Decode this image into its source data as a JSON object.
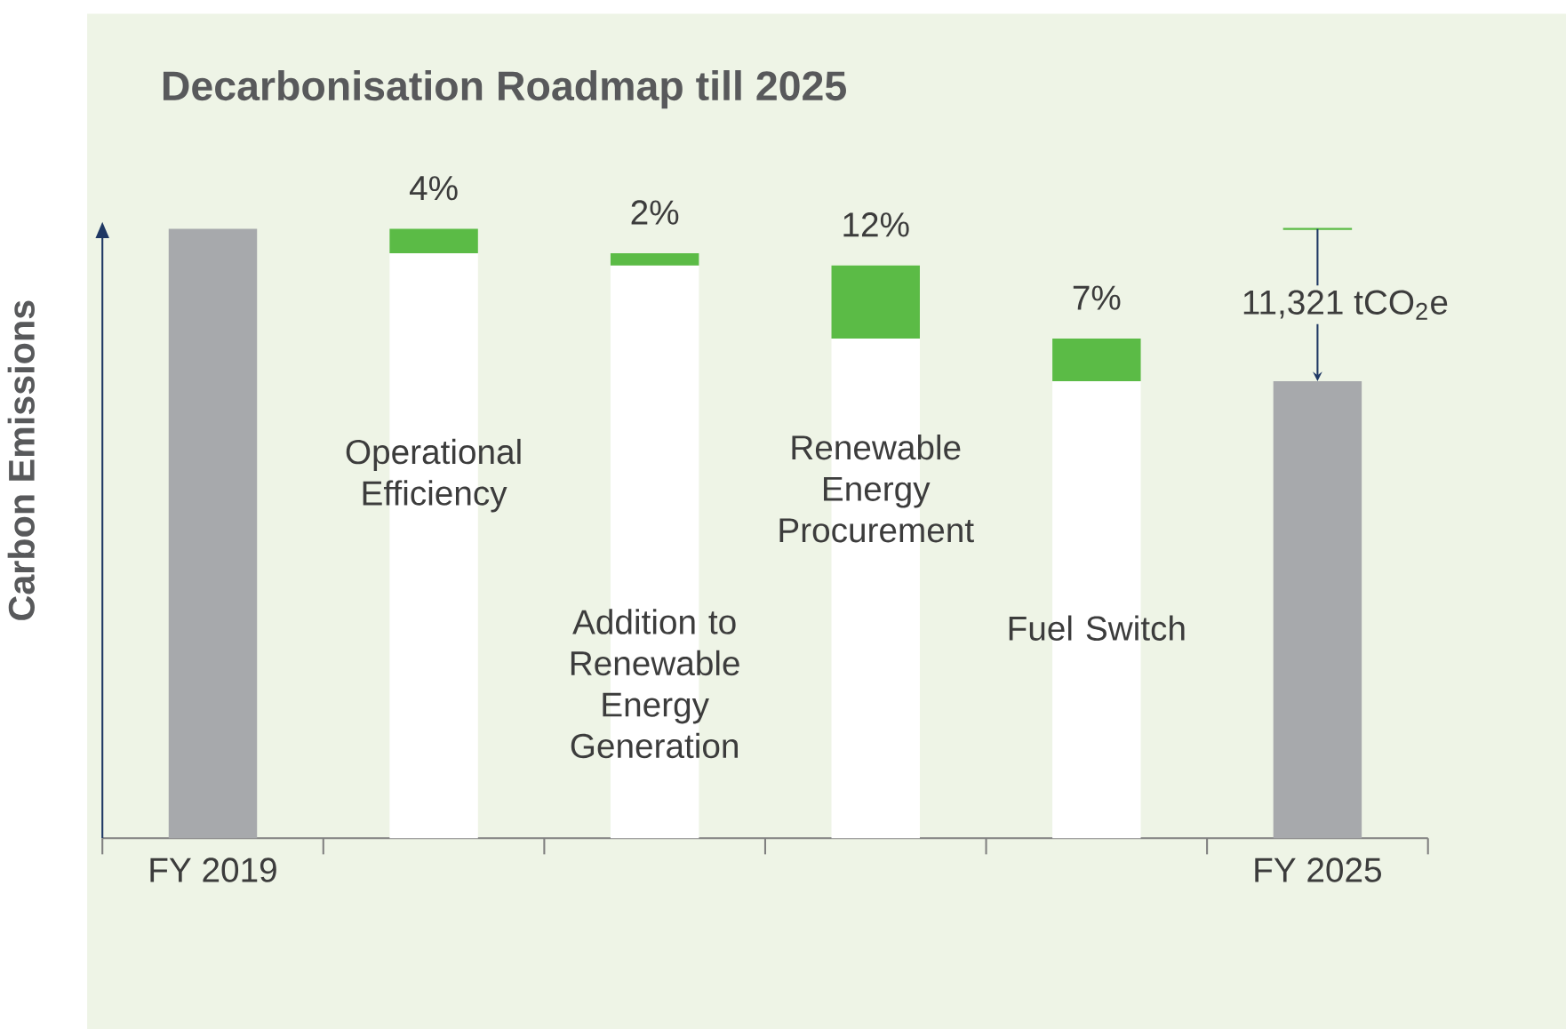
{
  "chart_data": {
    "type": "bar",
    "title": "Decarbonisation Roadmap till 2025",
    "ylabel": "Carbon Emissions",
    "categories": [
      "FY 2019",
      "Operational Efficiency",
      "Addition to Renewable Energy Generation",
      "Renewable Energy Procurement",
      "Fuel Switch",
      "FY 2025"
    ],
    "stacked": true,
    "ylim": [
      0,
      100
    ],
    "series": [
      {
        "color": "#ffffff",
        "values": [
          null,
          96,
          94,
          82,
          75,
          null
        ]
      },
      {
        "colors": [
          "#a7a9ac",
          "#5bbb46",
          "#5bbb46",
          "#5bbb46",
          "#5bbb46",
          "#a7a9ac"
        ],
        "values": [
          100,
          4,
          2,
          12,
          7,
          75
        ],
        "value_labels": [
          null,
          "4%",
          "2%",
          "12%",
          "7%",
          null
        ]
      }
    ],
    "annotations": [
      {
        "text": "11,321 tCO$_{2}$e",
        "x": "FY 2025",
        "y": 75
      }
    ]
  }
}
